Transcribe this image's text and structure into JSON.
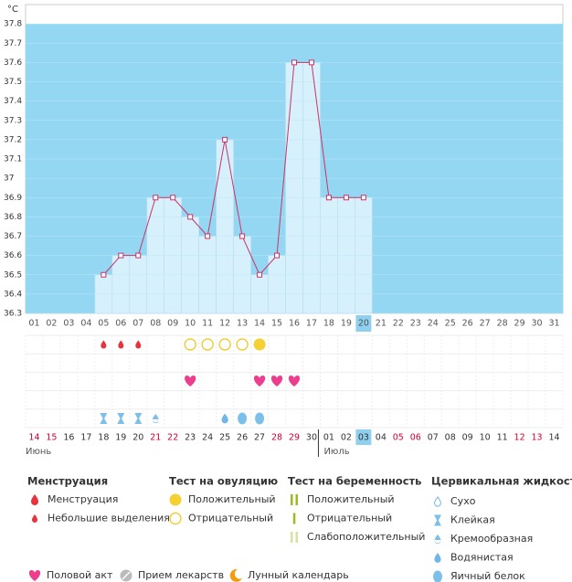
{
  "chart_data": {
    "type": "line",
    "y_label": "°C",
    "categories": [
      "01",
      "02",
      "03",
      "04",
      "05",
      "06",
      "07",
      "08",
      "09",
      "10",
      "11",
      "12",
      "13",
      "14",
      "15",
      "16",
      "17",
      "18",
      "19",
      "20",
      "21",
      "22",
      "23",
      "24",
      "25",
      "26",
      "27",
      "28",
      "29",
      "30",
      "31"
    ],
    "values": [
      null,
      null,
      null,
      null,
      36.5,
      36.6,
      36.6,
      36.9,
      36.9,
      36.8,
      36.7,
      37.2,
      36.7,
      36.5,
      36.6,
      37.6,
      37.6,
      36.9,
      36.9,
      36.9,
      null,
      null,
      null,
      null,
      null,
      null,
      null,
      null,
      null,
      null,
      null
    ],
    "color": "#cc3366",
    "bar_color": "#d6f0fc",
    "background": "#93d7f3",
    "selected": "20",
    "ylim": [
      36.3,
      37.9
    ],
    "yticks": [
      36.3,
      36.4,
      36.5,
      36.6,
      36.7,
      36.8,
      36.9,
      37,
      37.1,
      37.2,
      37.3,
      37.4,
      37.5,
      37.6,
      37.7,
      37.8
    ],
    "dates": [
      {
        "label": "14",
        "color": "#cc0033"
      },
      {
        "label": "15",
        "color": "#cc0033"
      },
      {
        "label": "16",
        "color": "#333"
      },
      {
        "label": "17",
        "color": "#333"
      },
      {
        "label": "18",
        "color": "#333"
      },
      {
        "label": "19",
        "color": "#333"
      },
      {
        "label": "20",
        "color": "#333"
      },
      {
        "label": "21",
        "color": "#cc0033"
      },
      {
        "label": "22",
        "color": "#cc0033"
      },
      {
        "label": "23",
        "color": "#333"
      },
      {
        "label": "24",
        "color": "#333"
      },
      {
        "label": "25",
        "color": "#333"
      },
      {
        "label": "26",
        "color": "#333"
      },
      {
        "label": "27",
        "color": "#333"
      },
      {
        "label": "28",
        "color": "#cc0033"
      },
      {
        "label": "29",
        "color": "#cc0033"
      },
      {
        "label": "30",
        "color": "#333"
      },
      {
        "label": "01",
        "color": "#333"
      },
      {
        "label": "02",
        "color": "#333"
      },
      {
        "label": "03",
        "color": "#333"
      },
      {
        "label": "04",
        "color": "#333"
      },
      {
        "label": "05",
        "color": "#cc0033"
      },
      {
        "label": "06",
        "color": "#cc0033"
      },
      {
        "label": "07",
        "color": "#333"
      },
      {
        "label": "08",
        "color": "#333"
      },
      {
        "label": "09",
        "color": "#333"
      },
      {
        "label": "10",
        "color": "#333"
      },
      {
        "label": "11",
        "color": "#333"
      },
      {
        "label": "12",
        "color": "#cc0033"
      },
      {
        "label": "13",
        "color": "#cc0033"
      },
      {
        "label": "14",
        "color": "#333"
      }
    ],
    "selected_date": "03",
    "months": [
      {
        "label": "Июнь",
        "from": "14"
      },
      {
        "label": "Июль",
        "from": "01"
      }
    ],
    "events": [
      {
        "day": "05",
        "mark": "Небольшие выделения"
      },
      {
        "day": "06",
        "mark": "Небольшие выделения"
      },
      {
        "day": "07",
        "mark": "Небольшие выделения"
      },
      {
        "day": "10",
        "mark": "Отрицательный"
      },
      {
        "day": "11",
        "mark": "Отрицательный"
      },
      {
        "day": "12",
        "mark": "Отрицательный"
      },
      {
        "day": "13",
        "mark": "Отрицательный"
      },
      {
        "day": "14",
        "mark": "Положительный"
      },
      {
        "day": "10",
        "mark": "Половой акт"
      },
      {
        "day": "14",
        "mark": "Половой акт"
      },
      {
        "day": "15",
        "mark": "Половой акт"
      },
      {
        "day": "16",
        "mark": "Половой акт"
      },
      {
        "day": "05",
        "mark": "Клейкая"
      },
      {
        "day": "06",
        "mark": "Клейкая"
      },
      {
        "day": "07",
        "mark": "Клейкая"
      },
      {
        "day": "08",
        "mark": "Кремообразная"
      },
      {
        "day": "12",
        "mark": "Водянистая"
      },
      {
        "day": "13",
        "mark": "Яичный белок"
      },
      {
        "day": "14",
        "mark": "Яичный белок"
      }
    ],
    "legend": [
      {
        "title": "Менструация",
        "items": [
          "Менструация",
          "Небольшие выделения"
        ]
      },
      {
        "title": "Тест на овуляцию",
        "items": [
          "Положительный",
          "Отрицательный"
        ]
      },
      {
        "title": "Тест на беременность",
        "items": [
          "Положительный",
          "Отрицательный",
          "Слабоположительный"
        ]
      },
      {
        "title": "Цервикальная жидкость",
        "items": [
          "Сухо",
          "Клейкая",
          "Кремообразная",
          "Водянистая",
          "Яичный белок"
        ]
      }
    ],
    "legend_bottom": [
      "Половой акт",
      "Прием лекарств",
      "Лунный календарь"
    ]
  }
}
